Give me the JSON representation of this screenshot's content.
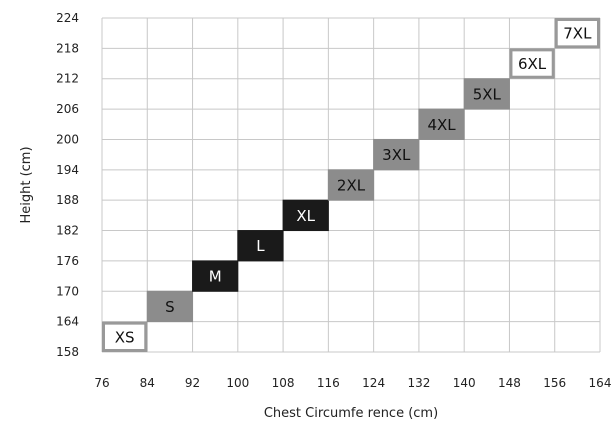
{
  "chart_data": {
    "type": "heatmap",
    "xlabel": "Chest Circumfe rence (cm)",
    "ylabel": "Height (cm)",
    "xlim": [
      76,
      164
    ],
    "ylim": [
      158,
      224
    ],
    "x_ticks": [
      "76",
      "84",
      "92",
      "100",
      "108",
      "116",
      "124",
      "132",
      "140",
      "148",
      "156",
      "164"
    ],
    "y_ticks": [
      "158",
      "164",
      "170",
      "176",
      "182",
      "188",
      "194",
      "200",
      "206",
      "212",
      "218",
      "224"
    ],
    "grid": true,
    "cells": [
      {
        "label": "XS",
        "x": [
          76,
          84
        ],
        "y": [
          158,
          164
        ],
        "style": "outline"
      },
      {
        "label": "S",
        "x": [
          84,
          92
        ],
        "y": [
          164,
          170
        ],
        "style": "gray"
      },
      {
        "label": "M",
        "x": [
          92,
          100
        ],
        "y": [
          170,
          176
        ],
        "style": "black"
      },
      {
        "label": "L",
        "x": [
          100,
          108
        ],
        "y": [
          176,
          182
        ],
        "style": "black"
      },
      {
        "label": "XL",
        "x": [
          108,
          116
        ],
        "y": [
          182,
          188
        ],
        "style": "black"
      },
      {
        "label": "2XL",
        "x": [
          116,
          124
        ],
        "y": [
          188,
          194
        ],
        "style": "gray"
      },
      {
        "label": "3XL",
        "x": [
          124,
          132
        ],
        "y": [
          194,
          200
        ],
        "style": "gray"
      },
      {
        "label": "4XL",
        "x": [
          132,
          140
        ],
        "y": [
          200,
          206
        ],
        "style": "gray"
      },
      {
        "label": "5XL",
        "x": [
          140,
          148
        ],
        "y": [
          206,
          212
        ],
        "style": "gray"
      },
      {
        "label": "6XL",
        "x": [
          148,
          156
        ],
        "y": [
          212,
          218
        ],
        "style": "outline"
      },
      {
        "label": "7XL",
        "x": [
          156,
          164
        ],
        "y": [
          218,
          224
        ],
        "style": "outline"
      }
    ],
    "colors": {
      "black": "#1a1a1a",
      "gray": "#8c8c8c",
      "outline_stroke": "#999999",
      "grid": "#c8c8c8"
    }
  }
}
